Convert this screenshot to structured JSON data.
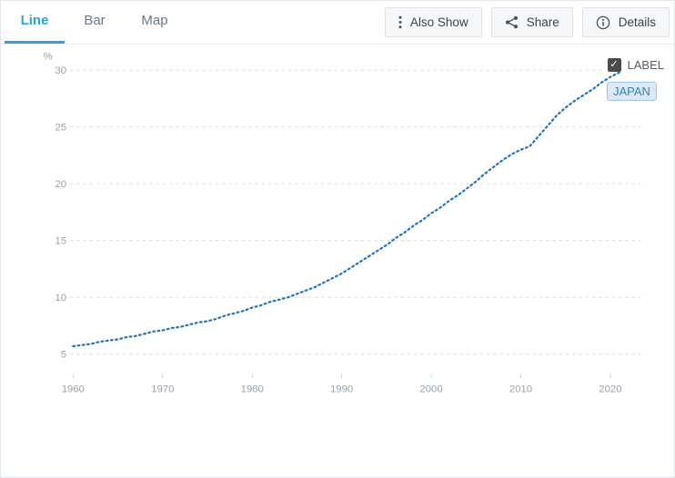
{
  "tabs": [
    {
      "label": "Line",
      "active": true
    },
    {
      "label": "Bar",
      "active": false
    },
    {
      "label": "Map",
      "active": false
    }
  ],
  "buttons": {
    "also_show": "Also Show",
    "share": "Share",
    "details": "Details"
  },
  "chart": {
    "label_toggle": "LABEL",
    "series_tag": "JAPAN",
    "unit": "%"
  },
  "colors": {
    "accent_tab": "#2ba3dc",
    "line": "#2273b8",
    "gridline": "#d9d9d9",
    "axis_text": "#9aa1ab",
    "tick": "#c9ced4",
    "tag_bg": "#dbe9f7",
    "tag_border": "#9fc4e0",
    "tag_text": "#3d7fb2"
  },
  "chart_data": {
    "type": "line",
    "title": "",
    "xlabel": "",
    "ylabel": "%",
    "unit": "%",
    "legend_position": "top-right",
    "grid": "horizontal-dashed",
    "line_style": "dotted",
    "ylim": [
      3.5,
      31
    ],
    "xlim": [
      1959.5,
      2023.5
    ],
    "y_ticks": [
      5,
      10,
      15,
      20,
      25,
      30
    ],
    "x_ticks": [
      1960,
      1970,
      1980,
      1990,
      2000,
      2010,
      2020
    ],
    "x": [
      1960,
      1961,
      1962,
      1963,
      1964,
      1965,
      1966,
      1967,
      1968,
      1969,
      1970,
      1971,
      1972,
      1973,
      1974,
      1975,
      1976,
      1977,
      1978,
      1979,
      1980,
      1981,
      1982,
      1983,
      1984,
      1985,
      1986,
      1987,
      1988,
      1989,
      1990,
      1991,
      1992,
      1993,
      1994,
      1995,
      1996,
      1997,
      1998,
      1999,
      2000,
      2001,
      2002,
      2003,
      2004,
      2005,
      2006,
      2007,
      2008,
      2009,
      2010,
      2011,
      2012,
      2013,
      2014,
      2015,
      2016,
      2017,
      2018,
      2019,
      2020,
      2021
    ],
    "series": [
      {
        "name": "JAPAN",
        "values": [
          5.7,
          5.8,
          5.9,
          6.1,
          6.2,
          6.3,
          6.5,
          6.6,
          6.8,
          7.0,
          7.1,
          7.3,
          7.4,
          7.6,
          7.8,
          7.9,
          8.1,
          8.4,
          8.6,
          8.8,
          9.1,
          9.3,
          9.6,
          9.8,
          10.0,
          10.3,
          10.6,
          10.9,
          11.3,
          11.7,
          12.1,
          12.6,
          13.1,
          13.6,
          14.1,
          14.6,
          15.2,
          15.7,
          16.3,
          16.8,
          17.4,
          17.9,
          18.5,
          19.0,
          19.6,
          20.2,
          20.9,
          21.5,
          22.1,
          22.6,
          23.0,
          23.3,
          24.2,
          25.1,
          26.0,
          26.7,
          27.3,
          27.8,
          28.3,
          28.9,
          29.4,
          29.8
        ]
      }
    ]
  }
}
